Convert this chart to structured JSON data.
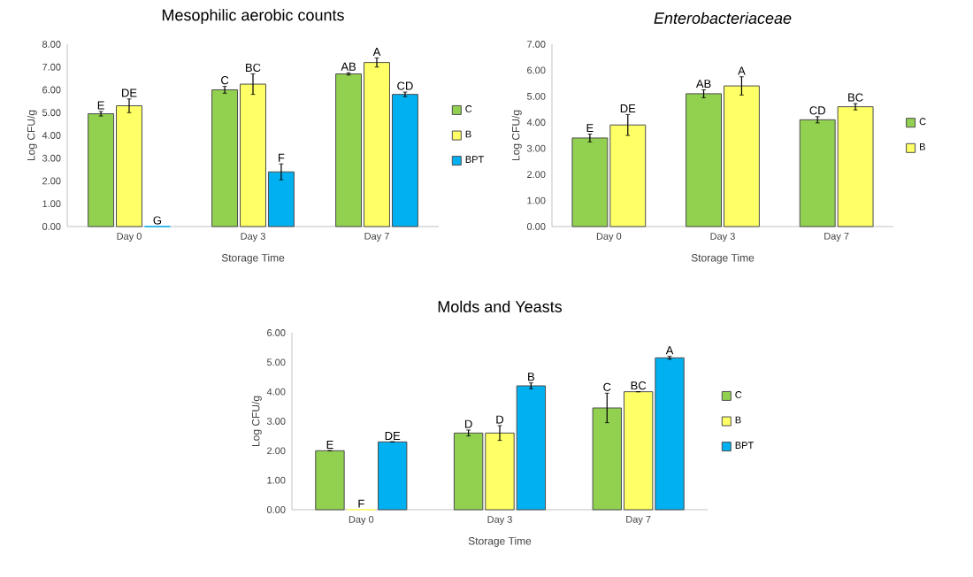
{
  "chart_data": [
    {
      "type": "bar",
      "title": "Mesophilic aerobic counts",
      "xlabel": "Storage Time",
      "ylabel": "Log CFU/g",
      "categories": [
        "Day 0",
        "Day 3",
        "Day 7"
      ],
      "series": [
        {
          "name": "C",
          "color": "#92d050",
          "values": [
            4.95,
            6.0,
            6.7
          ],
          "errors": [
            0.1,
            0.15,
            0.05
          ],
          "value_labels": [
            "E",
            "C",
            "AB"
          ]
        },
        {
          "name": "B",
          "color": "#ffff66",
          "values": [
            5.3,
            6.25,
            7.2
          ],
          "errors": [
            0.3,
            0.45,
            0.2
          ],
          "value_labels": [
            "DE",
            "BC",
            "A"
          ]
        },
        {
          "name": "BPT",
          "color": "#00b0f0",
          "values": [
            0,
            2.4,
            5.8
          ],
          "errors": [
            null,
            0.35,
            0.1
          ],
          "value_labels": [
            "G",
            "F",
            "CD"
          ]
        }
      ],
      "ylim": [
        0,
        8
      ],
      "yticks": [
        {
          "value": 0,
          "label": "0.00"
        },
        {
          "value": 1,
          "label": "1.00"
        },
        {
          "value": 2,
          "label": "2.00"
        },
        {
          "value": 3,
          "label": "3.00"
        },
        {
          "value": 4,
          "label": "4.00"
        },
        {
          "value": 5,
          "label": "5.00"
        },
        {
          "value": 6,
          "label": "6.00"
        },
        {
          "value": 7,
          "label": "7.00"
        },
        {
          "value": 8,
          "label": "8.00"
        }
      ],
      "legend": "right",
      "grid": false
    },
    {
      "type": "bar",
      "title": "Enterobacteriaceae",
      "xlabel": "Storage Time",
      "ylabel": "Log CFU/g",
      "categories": [
        "Day 0",
        "Day 3",
        "Day 7"
      ],
      "series": [
        {
          "name": "C",
          "color": "#92d050",
          "values": [
            3.4,
            5.1,
            4.1
          ],
          "errors": [
            0.15,
            0.15,
            0.12
          ],
          "value_labels": [
            "E",
            "AB",
            "CD"
          ]
        },
        {
          "name": "B",
          "color": "#ffff66",
          "values": [
            3.9,
            5.4,
            4.6
          ],
          "errors": [
            0.4,
            0.35,
            0.12
          ],
          "value_labels": [
            "DE",
            "A",
            "BC"
          ]
        }
      ],
      "ylim": [
        0,
        7
      ],
      "yticks": [
        {
          "value": 0,
          "label": "0.00"
        },
        {
          "value": 1,
          "label": "1.00"
        },
        {
          "value": 2,
          "label": "2.00"
        },
        {
          "value": 3,
          "label": "3.00"
        },
        {
          "value": 4,
          "label": "4.00"
        },
        {
          "value": 5,
          "label": "5.00"
        },
        {
          "value": 6,
          "label": "6.00"
        },
        {
          "value": 7,
          "label": "7.00"
        }
      ],
      "legend": "right",
      "grid": false
    },
    {
      "type": "bar",
      "title": "Molds and Yeasts",
      "xlabel": "Storage Time",
      "ylabel": "Log CFU/g",
      "categories": [
        "Day 0",
        "Day 3",
        "Day 7"
      ],
      "series": [
        {
          "name": "C",
          "color": "#92d050",
          "values": [
            2.0,
            2.6,
            3.45
          ],
          "errors": [
            null,
            0.1,
            0.5
          ],
          "value_labels": [
            "E",
            "D",
            "C"
          ]
        },
        {
          "name": "B",
          "color": "#ffff66",
          "values": [
            0,
            2.6,
            4.0
          ],
          "errors": [
            null,
            0.25,
            null
          ],
          "value_labels": [
            "F",
            "D",
            "BC"
          ]
        },
        {
          "name": "BPT",
          "color": "#00b0f0",
          "values": [
            2.3,
            4.2,
            5.15
          ],
          "errors": [
            null,
            0.1,
            0.05
          ],
          "value_labels": [
            "DE",
            "B",
            "A"
          ]
        }
      ],
      "ylim": [
        0,
        6
      ],
      "yticks": [
        {
          "value": 0,
          "label": "0.00"
        },
        {
          "value": 1,
          "label": "1.00"
        },
        {
          "value": 2,
          "label": "2.00"
        },
        {
          "value": 3,
          "label": "3.00"
        },
        {
          "value": 4,
          "label": "4.00"
        },
        {
          "value": 5,
          "label": "5.00"
        },
        {
          "value": 6,
          "label": "6.00"
        }
      ],
      "legend": "right",
      "grid": false
    }
  ]
}
